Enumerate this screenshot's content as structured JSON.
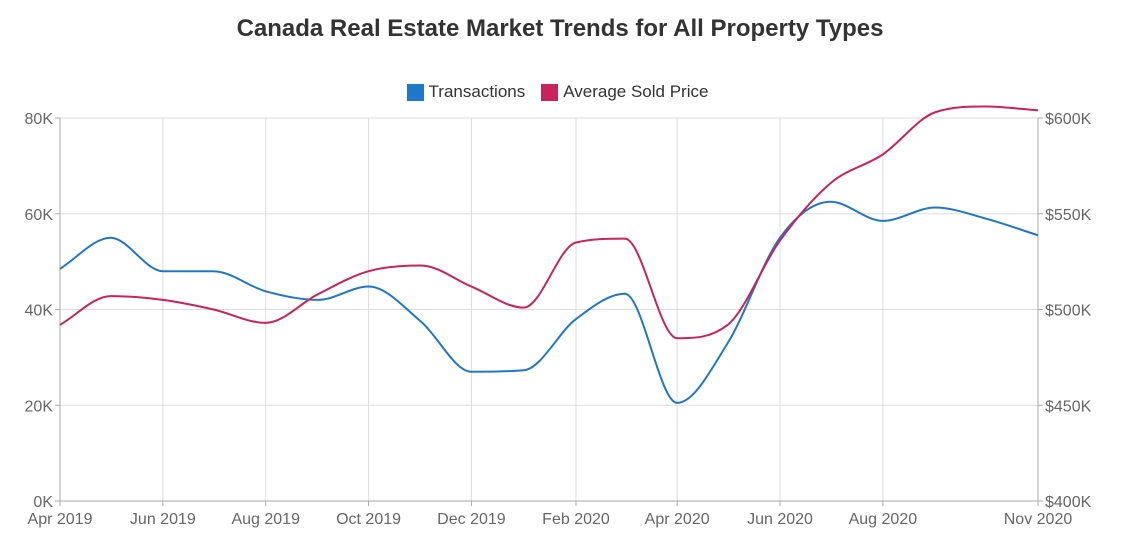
{
  "chart_data": {
    "type": "line",
    "title": "Canada Real Estate Market Trends for All Property Types",
    "xlabel": "",
    "ylabel": "",
    "x": [
      "2019-04-01",
      "2019-05-01",
      "2019-06-01",
      "2019-07-01",
      "2019-08-01",
      "2019-09-01",
      "2019-10-01",
      "2019-11-01",
      "2019-12-01",
      "2020-01-01",
      "2020-02-01",
      "2020-03-01",
      "2020-04-01",
      "2020-05-01",
      "2020-06-01",
      "2020-07-01",
      "2020-08-01",
      "2020-09-01",
      "2020-10-01",
      "2020-11-01"
    ],
    "x_tick_labels": [
      "Apr 2019",
      "Jun 2019",
      "Aug 2019",
      "Oct 2019",
      "Dec 2019",
      "Feb 2020",
      "Apr 2020",
      "Jun 2020",
      "Aug 2020",
      "Nov 2020"
    ],
    "x_tick_dates": [
      "2019-04-01",
      "2019-06-01",
      "2019-08-01",
      "2019-10-01",
      "2019-12-01",
      "2020-02-01",
      "2020-04-01",
      "2020-06-01",
      "2020-08-01",
      "2020-11-01"
    ],
    "y_left": {
      "ylim": [
        0,
        80000
      ],
      "tick_labels": [
        "0K",
        "20K",
        "40K",
        "60K",
        "80K"
      ],
      "tick_values": [
        0,
        20000,
        40000,
        60000,
        80000
      ]
    },
    "y_right": {
      "ylim": [
        400000,
        600000
      ],
      "tick_labels": [
        "$400K",
        "$450K",
        "$500K",
        "$550K",
        "$600K"
      ],
      "tick_values": [
        400000,
        450000,
        500000,
        550000,
        600000
      ]
    },
    "series": [
      {
        "name": "Transactions",
        "axis": "left",
        "color": "#1f77c9",
        "values": [
          48500,
          55000,
          48000,
          48000,
          43800,
          42000,
          44800,
          37500,
          27000,
          27300,
          38000,
          43300,
          20500,
          33000,
          55000,
          62500,
          58500,
          61300,
          59000,
          55500
        ]
      },
      {
        "name": "Average Sold Price",
        "axis": "right",
        "color": "#c9235c",
        "values": [
          492000,
          507000,
          505000,
          500000,
          493000,
          508000,
          520000,
          523000,
          512000,
          501000,
          535000,
          537000,
          485000,
          492000,
          536000,
          566000,
          581000,
          603000,
          606000,
          604000
        ]
      }
    ],
    "grid": true,
    "legend_position": "top-center"
  }
}
